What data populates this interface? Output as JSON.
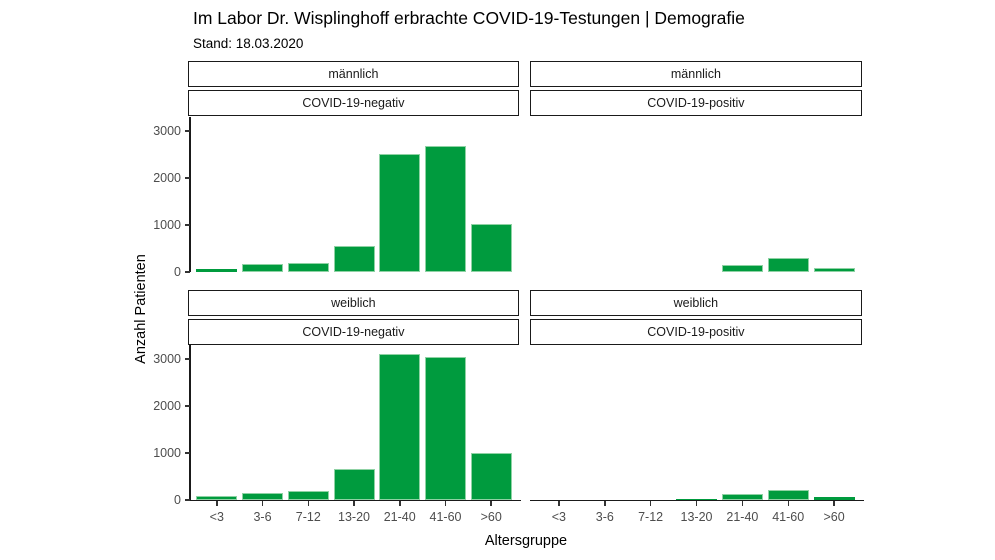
{
  "header": {
    "title": "Im Labor Dr. Wisplinghoff erbrachte COVID-19-Testungen | Demografie",
    "subtitle": "Stand: 18.03.2020"
  },
  "chart_data": {
    "type": "bar",
    "title": "Im Labor Dr. Wisplinghoff erbrachte COVID-19-Testungen | Demografie",
    "subtitle": "Stand: 18.03.2020",
    "xlabel": "Altersgruppe",
    "ylabel": "Anzahl Patienten",
    "categories": [
      "<3",
      "3-6",
      "7-12",
      "13-20",
      "21-40",
      "41-60",
      ">60"
    ],
    "y_ticks": [
      0,
      1000,
      2000,
      3000
    ],
    "ylim": [
      0,
      3300
    ],
    "grid": "off",
    "legend": "none",
    "bar_color": "#009b3e",
    "bar_border": "#8fd2a4",
    "facet_rows": [
      "männlich",
      "weiblich"
    ],
    "facet_cols": [
      "COVID-19-negativ",
      "COVID-19-positiv"
    ],
    "panels": [
      {
        "sex": "männlich",
        "result": "COVID-19-negativ",
        "values": [
          60,
          170,
          190,
          550,
          2500,
          2690,
          1020
        ]
      },
      {
        "sex": "männlich",
        "result": "COVID-19-positiv",
        "values": [
          0,
          0,
          0,
          0,
          140,
          290,
          95
        ]
      },
      {
        "sex": "weiblich",
        "result": "COVID-19-negativ",
        "values": [
          80,
          150,
          185,
          670,
          3110,
          3050,
          990
        ]
      },
      {
        "sex": "weiblich",
        "result": "COVID-19-positiv",
        "values": [
          0,
          0,
          0,
          25,
          135,
          205,
          60
        ]
      }
    ]
  }
}
